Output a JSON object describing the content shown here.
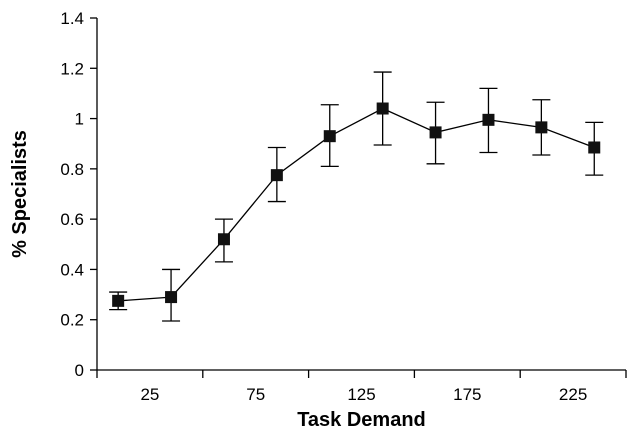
{
  "chart_data": {
    "type": "line",
    "title": "",
    "xlabel": "Task Demand",
    "ylabel": "% Specialists",
    "x": [
      10,
      35,
      60,
      85,
      110,
      135,
      160,
      185,
      210,
      235
    ],
    "xlim": [
      0,
      250
    ],
    "x_ticks": [
      25,
      75,
      125,
      175,
      225
    ],
    "x_tick_labels": [
      "25",
      "75",
      "125",
      "175",
      "225"
    ],
    "ylim": [
      0,
      1.4
    ],
    "y_ticks": [
      0,
      0.2,
      0.4,
      0.6,
      0.8,
      1,
      1.2,
      1.4
    ],
    "y_tick_labels": [
      "0",
      "0.2",
      "0.4",
      "0.6",
      "0.8",
      "1",
      "1.2",
      "1.4"
    ],
    "grid": false,
    "legend": false,
    "marker": "square",
    "series": [
      {
        "values": [
          0.275,
          0.29,
          0.52,
          0.775,
          0.93,
          1.04,
          0.945,
          0.995,
          0.965,
          0.885
        ],
        "error_low": [
          0.24,
          0.195,
          0.43,
          0.67,
          0.81,
          0.895,
          0.82,
          0.865,
          0.855,
          0.775
        ],
        "error_high": [
          0.31,
          0.4,
          0.6,
          0.885,
          1.055,
          1.185,
          1.065,
          1.12,
          1.075,
          0.985
        ]
      }
    ]
  }
}
